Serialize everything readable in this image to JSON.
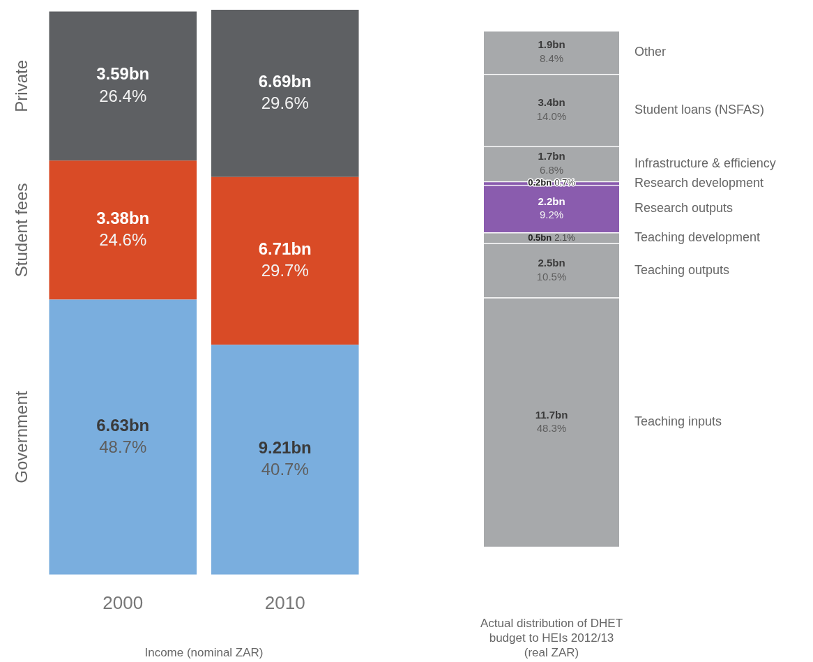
{
  "chart_data": [
    {
      "type": "bar",
      "stacked": true,
      "xlabel": "Income (nominal ZAR)",
      "categories": [
        "2000",
        "2010"
      ],
      "legend": false,
      "series": [
        {
          "name": "Government",
          "color": "#7aaede",
          "values": [
            48.7,
            40.7
          ],
          "value_labels": [
            "6.63bn\n48.7%",
            "9.21bn\n40.7%"
          ]
        },
        {
          "name": "Student fees",
          "color": "#d94b26",
          "values": [
            24.6,
            29.7
          ],
          "value_labels": [
            "3.38bn\n24.6%",
            "6.71bn\n29.7%"
          ]
        },
        {
          "name": "Private",
          "color": "#5e6063",
          "values": [
            26.4,
            29.6
          ],
          "value_labels": [
            "3.59bn\n26.4%",
            "6.69bn\n29.6%"
          ]
        }
      ]
    },
    {
      "type": "bar",
      "stacked": true,
      "xlabel": "Actual distribution of DHET budget to HEIs 2012/13 (real ZAR)",
      "categories": [
        null
      ],
      "legend": false,
      "series": [
        {
          "name": "Teaching inputs",
          "color": "#a7a9ab",
          "values": [
            48.3
          ],
          "value_labels": [
            "11.7bn\n48.3%"
          ]
        },
        {
          "name": "Teaching outputs",
          "color": "#a7a9ab",
          "values": [
            10.5
          ],
          "value_labels": [
            "2.5bn\n10.5%"
          ]
        },
        {
          "name": "Teaching development",
          "color": "#a7a9ab",
          "values": [
            2.1
          ],
          "value_labels": [
            "0.5bn\n2.1%"
          ]
        },
        {
          "name": "Research outputs",
          "color": "#8a5cae",
          "values": [
            9.2
          ],
          "value_labels": [
            "2.2bn\n9.2%"
          ]
        },
        {
          "name": "Research development",
          "color": "#8a5cae",
          "values": [
            0.7
          ],
          "value_labels": [
            "0.2bn\n0.7%"
          ]
        },
        {
          "name": "Infrastructure & efficiency",
          "color": "#a7a9ab",
          "values": [
            6.8
          ],
          "value_labels": [
            "1.7bn\n6.8%"
          ]
        },
        {
          "name": "Student loans (NSFAS)",
          "color": "#a7a9ab",
          "values": [
            14.0
          ],
          "value_labels": [
            "3.4bn\n14.0%"
          ]
        },
        {
          "name": "Other",
          "color": "#a7a9ab",
          "values": [
            8.4
          ],
          "value_labels": [
            "1.9bn\n8.4%"
          ]
        }
      ]
    }
  ]
}
